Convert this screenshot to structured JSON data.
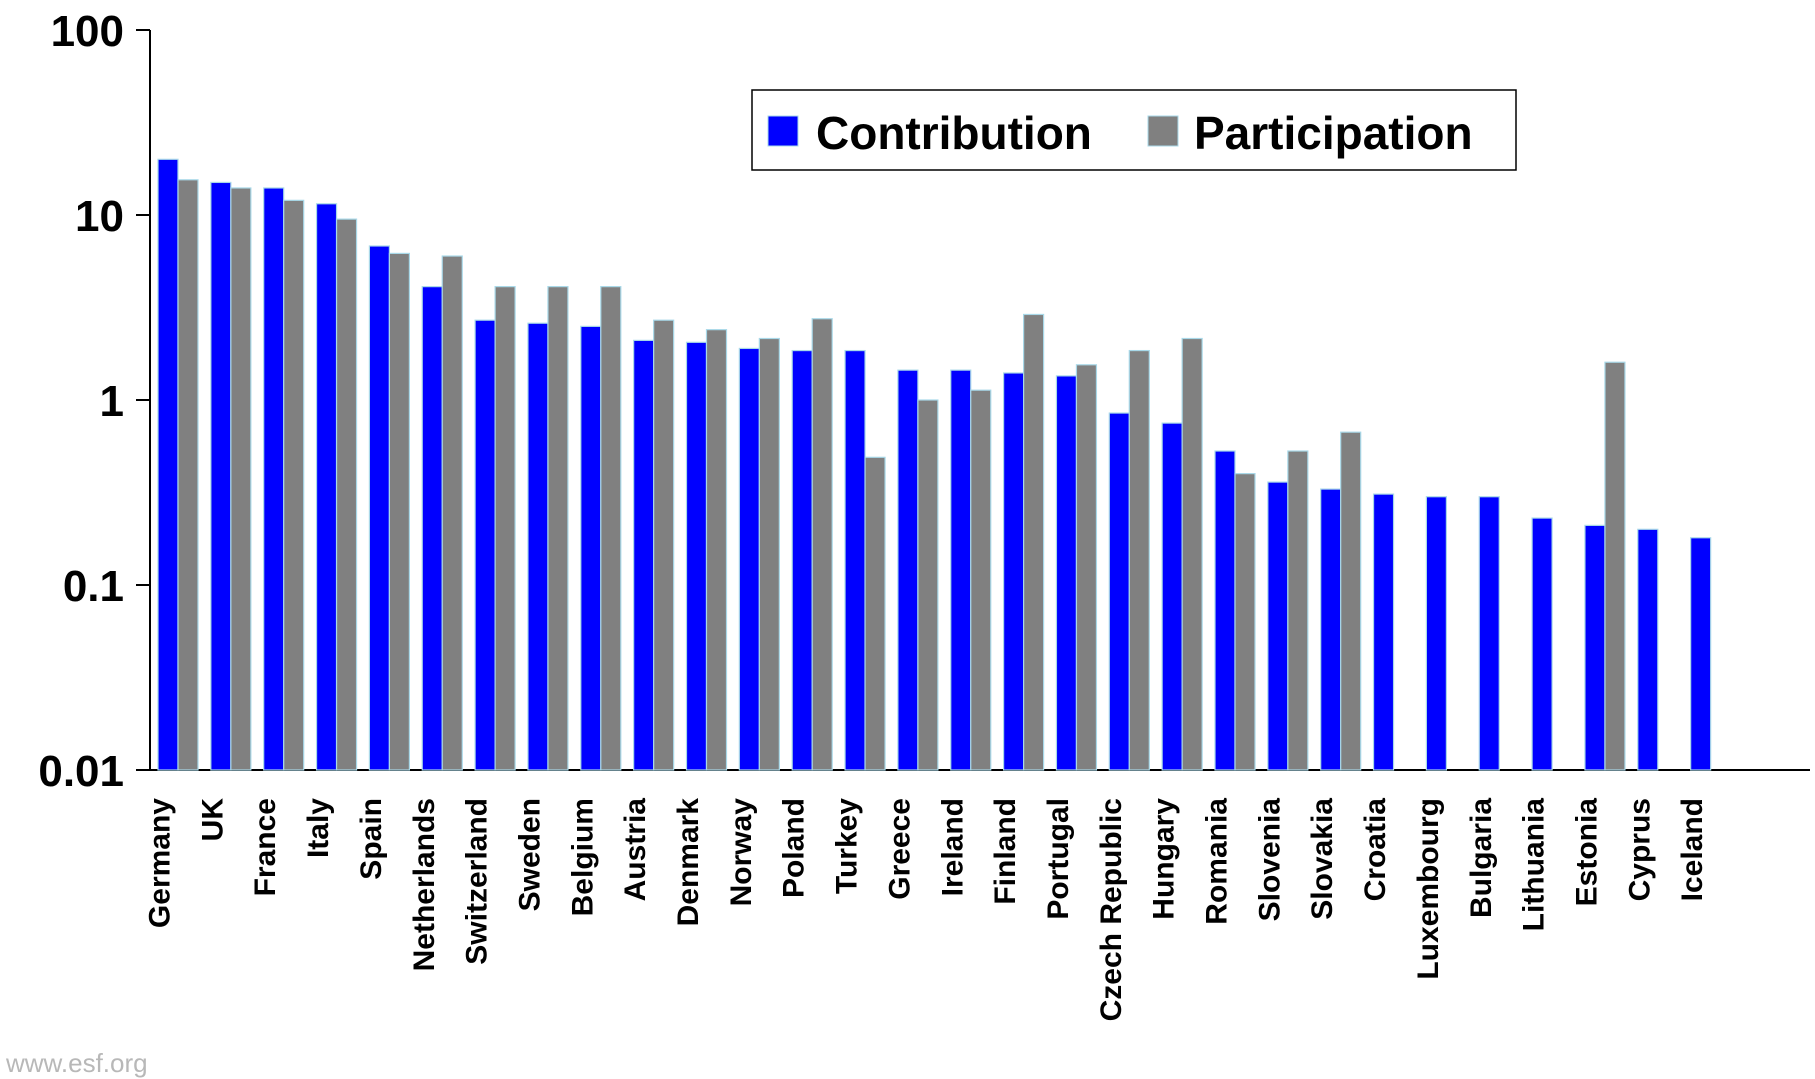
{
  "footer_text": "www.esf.org",
  "colors": {
    "contribution": "#0000ff",
    "participation": "#808080",
    "bar_stroke": "#a8d8e8"
  },
  "chart_data": {
    "type": "bar",
    "title": "",
    "xlabel": "",
    "ylabel": "",
    "yscale": "log",
    "ylim": [
      0.01,
      100
    ],
    "yticks": [
      0.01,
      0.1,
      1,
      10,
      100
    ],
    "ytick_labels": [
      "0.01",
      "0.1",
      "1",
      "10",
      "100"
    ],
    "grid": false,
    "legend_position": "top-right",
    "categories": [
      "Germany",
      "UK",
      "France",
      "Italy",
      "Spain",
      "Netherlands",
      "Switzerland",
      "Sweden",
      "Belgium",
      "Austria",
      "Denmark",
      "Norway",
      "Poland",
      "Turkey",
      "Greece",
      "Ireland",
      "Finland",
      "Portugal",
      "Czech Republic",
      "Hungary",
      "Romania",
      "Slovenia",
      "Slovakia",
      "Croatia",
      "Luxembourg",
      "Bulgaria",
      "Lithuania",
      "Estonia",
      "Cyprus",
      "Iceland"
    ],
    "series": [
      {
        "name": "Contribution",
        "values": [
          20,
          15,
          14,
          11.5,
          6.8,
          4.1,
          2.7,
          2.6,
          2.5,
          2.1,
          2.05,
          1.9,
          1.85,
          1.85,
          1.45,
          1.45,
          1.4,
          1.35,
          0.85,
          0.75,
          0.53,
          0.36,
          0.33,
          0.31,
          0.3,
          0.3,
          0.23,
          0.21,
          0.2,
          0.18
        ]
      },
      {
        "name": "Participation",
        "values": [
          15.5,
          14,
          12,
          9.5,
          6.2,
          6,
          4.1,
          4.1,
          4.1,
          2.7,
          2.4,
          2.15,
          2.75,
          0.49,
          1,
          1.13,
          2.9,
          1.55,
          1.85,
          2.15,
          0.4,
          0.53,
          0.67,
          null,
          null,
          null,
          null,
          1.6,
          null,
          null
        ]
      }
    ]
  }
}
